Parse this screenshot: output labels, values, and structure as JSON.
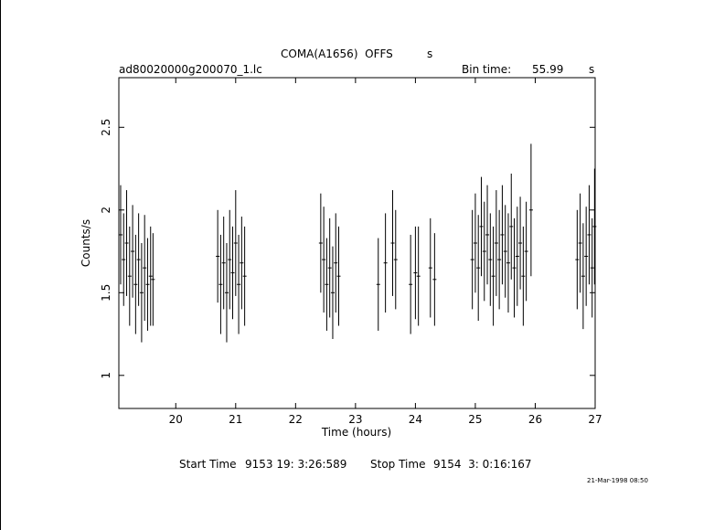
{
  "header": {
    "object_name": "COMA(A1656)  OFFS",
    "object_unit": "s",
    "filename": "ad80020000g200070_1.lc",
    "bin_label": "Bin time:",
    "bin_value": "55.99",
    "bin_unit": "s"
  },
  "footer": {
    "start_label": "Start Time",
    "start_value": "9153 19: 3:26:589",
    "stop_label": "Stop Time",
    "stop_value": "9154  3: 0:16:167",
    "date_stamp": "21-Mar-1998 08:50"
  },
  "colors": {
    "ink": "#000000",
    "background": "#ffffff"
  },
  "chart_data": {
    "type": "line",
    "title": "",
    "xlabel": "Time (hours)",
    "ylabel": "Counts/s",
    "xlim": [
      19.05,
      27.0
    ],
    "ylim": [
      0.8,
      2.8
    ],
    "xticks": [
      20,
      21,
      22,
      23,
      24,
      25,
      26,
      27
    ],
    "yticks": [
      1,
      1.5,
      2,
      2.5
    ],
    "grid": false,
    "series": [
      {
        "values_note": "",
        "x": [
          19.08,
          19.13,
          19.18,
          19.23,
          19.28,
          19.33,
          19.38,
          19.43,
          19.48,
          19.53,
          19.58,
          19.62,
          20.7,
          20.75,
          20.8,
          20.85,
          20.9,
          20.95,
          21.0,
          21.05,
          21.1,
          21.15,
          22.42,
          22.47,
          22.52,
          22.57,
          22.62,
          22.67,
          22.72,
          23.38,
          23.5,
          23.62,
          23.67,
          23.92,
          24.0,
          24.05,
          24.25,
          24.32,
          24.95,
          25.0,
          25.05,
          25.1,
          25.15,
          25.2,
          25.25,
          25.3,
          25.35,
          25.4,
          25.45,
          25.5,
          25.55,
          25.6,
          25.65,
          25.7,
          25.75,
          25.8,
          25.85,
          25.93,
          26.7,
          26.75,
          26.8,
          26.85,
          26.9,
          26.95,
          26.99
        ],
        "y": [
          1.85,
          1.7,
          1.8,
          1.6,
          1.75,
          1.55,
          1.7,
          1.5,
          1.65,
          1.55,
          1.6,
          1.58,
          1.72,
          1.55,
          1.68,
          1.5,
          1.7,
          1.62,
          1.8,
          1.55,
          1.68,
          1.6,
          1.8,
          1.7,
          1.55,
          1.65,
          1.5,
          1.68,
          1.6,
          1.55,
          1.68,
          1.8,
          1.7,
          1.55,
          1.62,
          1.6,
          1.65,
          1.58,
          1.7,
          1.8,
          1.65,
          1.9,
          1.75,
          1.85,
          1.7,
          1.6,
          1.8,
          1.7,
          1.85,
          1.75,
          1.68,
          1.9,
          1.65,
          1.72,
          1.8,
          1.6,
          1.75,
          2.0,
          1.7,
          1.8,
          1.6,
          1.72,
          1.85,
          1.65,
          1.9
        ],
        "err": [
          0.3,
          0.28,
          0.32,
          0.3,
          0.28,
          0.3,
          0.28,
          0.3,
          0.32,
          0.28,
          0.3,
          0.28,
          0.28,
          0.3,
          0.28,
          0.3,
          0.3,
          0.28,
          0.32,
          0.3,
          0.28,
          0.3,
          0.3,
          0.32,
          0.28,
          0.3,
          0.28,
          0.3,
          0.3,
          0.28,
          0.3,
          0.32,
          0.3,
          0.3,
          0.28,
          0.3,
          0.3,
          0.28,
          0.3,
          0.3,
          0.32,
          0.3,
          0.3,
          0.3,
          0.28,
          0.3,
          0.32,
          0.3,
          0.3,
          0.28,
          0.3,
          0.32,
          0.3,
          0.3,
          0.28,
          0.3,
          0.3,
          0.4,
          0.3,
          0.3,
          0.32,
          0.3,
          0.3,
          0.3,
          0.35
        ]
      }
    ]
  }
}
